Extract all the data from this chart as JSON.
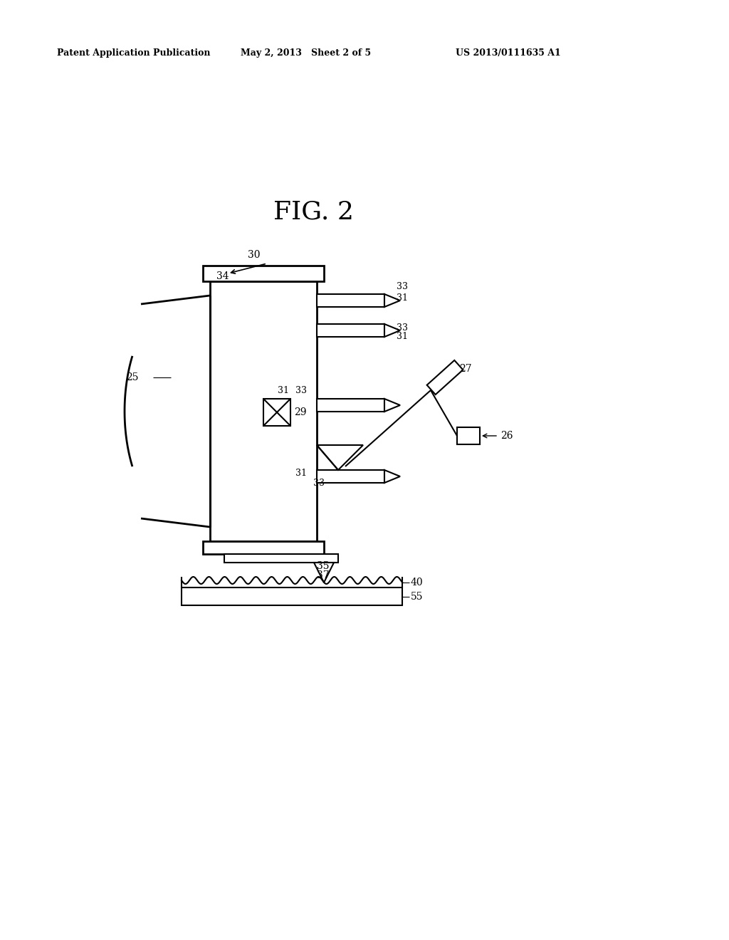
{
  "background_color": "#ffffff",
  "fig_label": "FIG. 2",
  "header_left": "Patent Application Publication",
  "header_center": "May 2, 2013   Sheet 2 of 5",
  "header_right": "US 2013/0111635 A1"
}
